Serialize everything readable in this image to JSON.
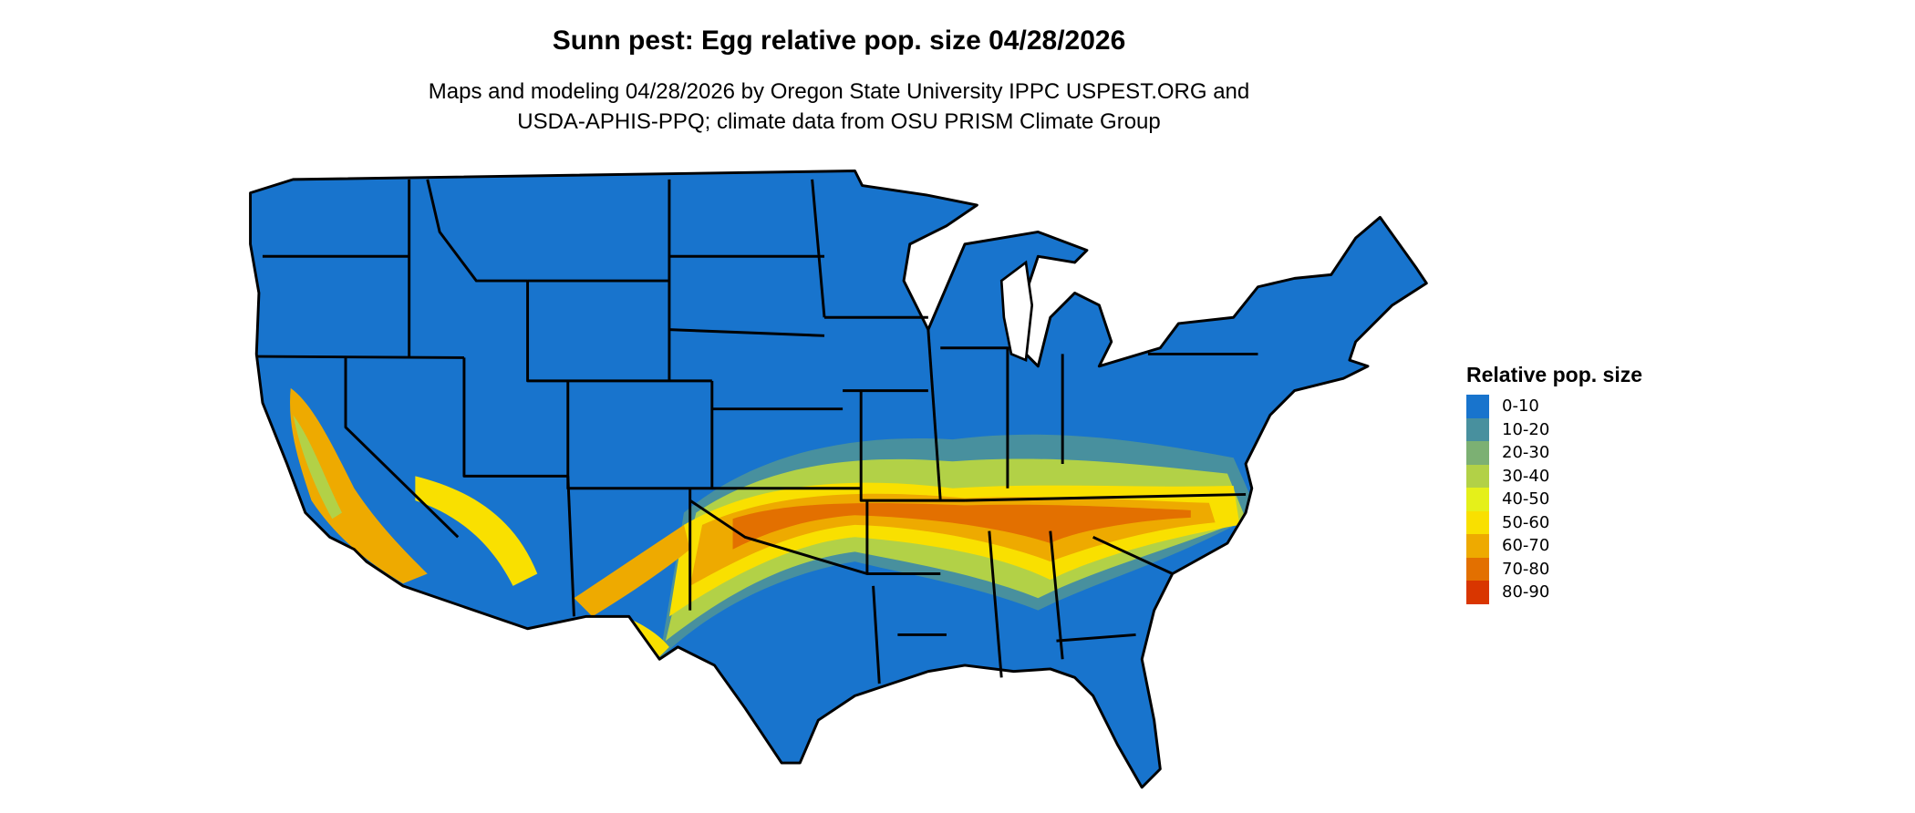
{
  "title": "Sunn pest: Egg relative pop. size 04/28/2026",
  "subtitle_lines": [
    "Maps and modeling 04/28/2026 by Oregon State University IPPC USPEST.ORG and",
    "USDA-APHIS-PPQ; climate data from OSU PRISM Climate Group"
  ],
  "map": {
    "region": "Contiguous United States with state borders",
    "background_class_color": "#1874CD"
  },
  "legend": {
    "title": "Relative pop. size",
    "items": [
      {
        "label": "0-10",
        "color": "#1874CD"
      },
      {
        "label": "10-20",
        "color": "#48909E"
      },
      {
        "label": "20-30",
        "color": "#7CB073"
      },
      {
        "label": "30-40",
        "color": "#B2D147"
      },
      {
        "label": "40-50",
        "color": "#E5F01A"
      },
      {
        "label": "50-60",
        "color": "#F9E000"
      },
      {
        "label": "60-70",
        "color": "#EEAA00"
      },
      {
        "label": "70-80",
        "color": "#E37000"
      },
      {
        "label": "80-90",
        "color": "#D93600"
      }
    ]
  }
}
